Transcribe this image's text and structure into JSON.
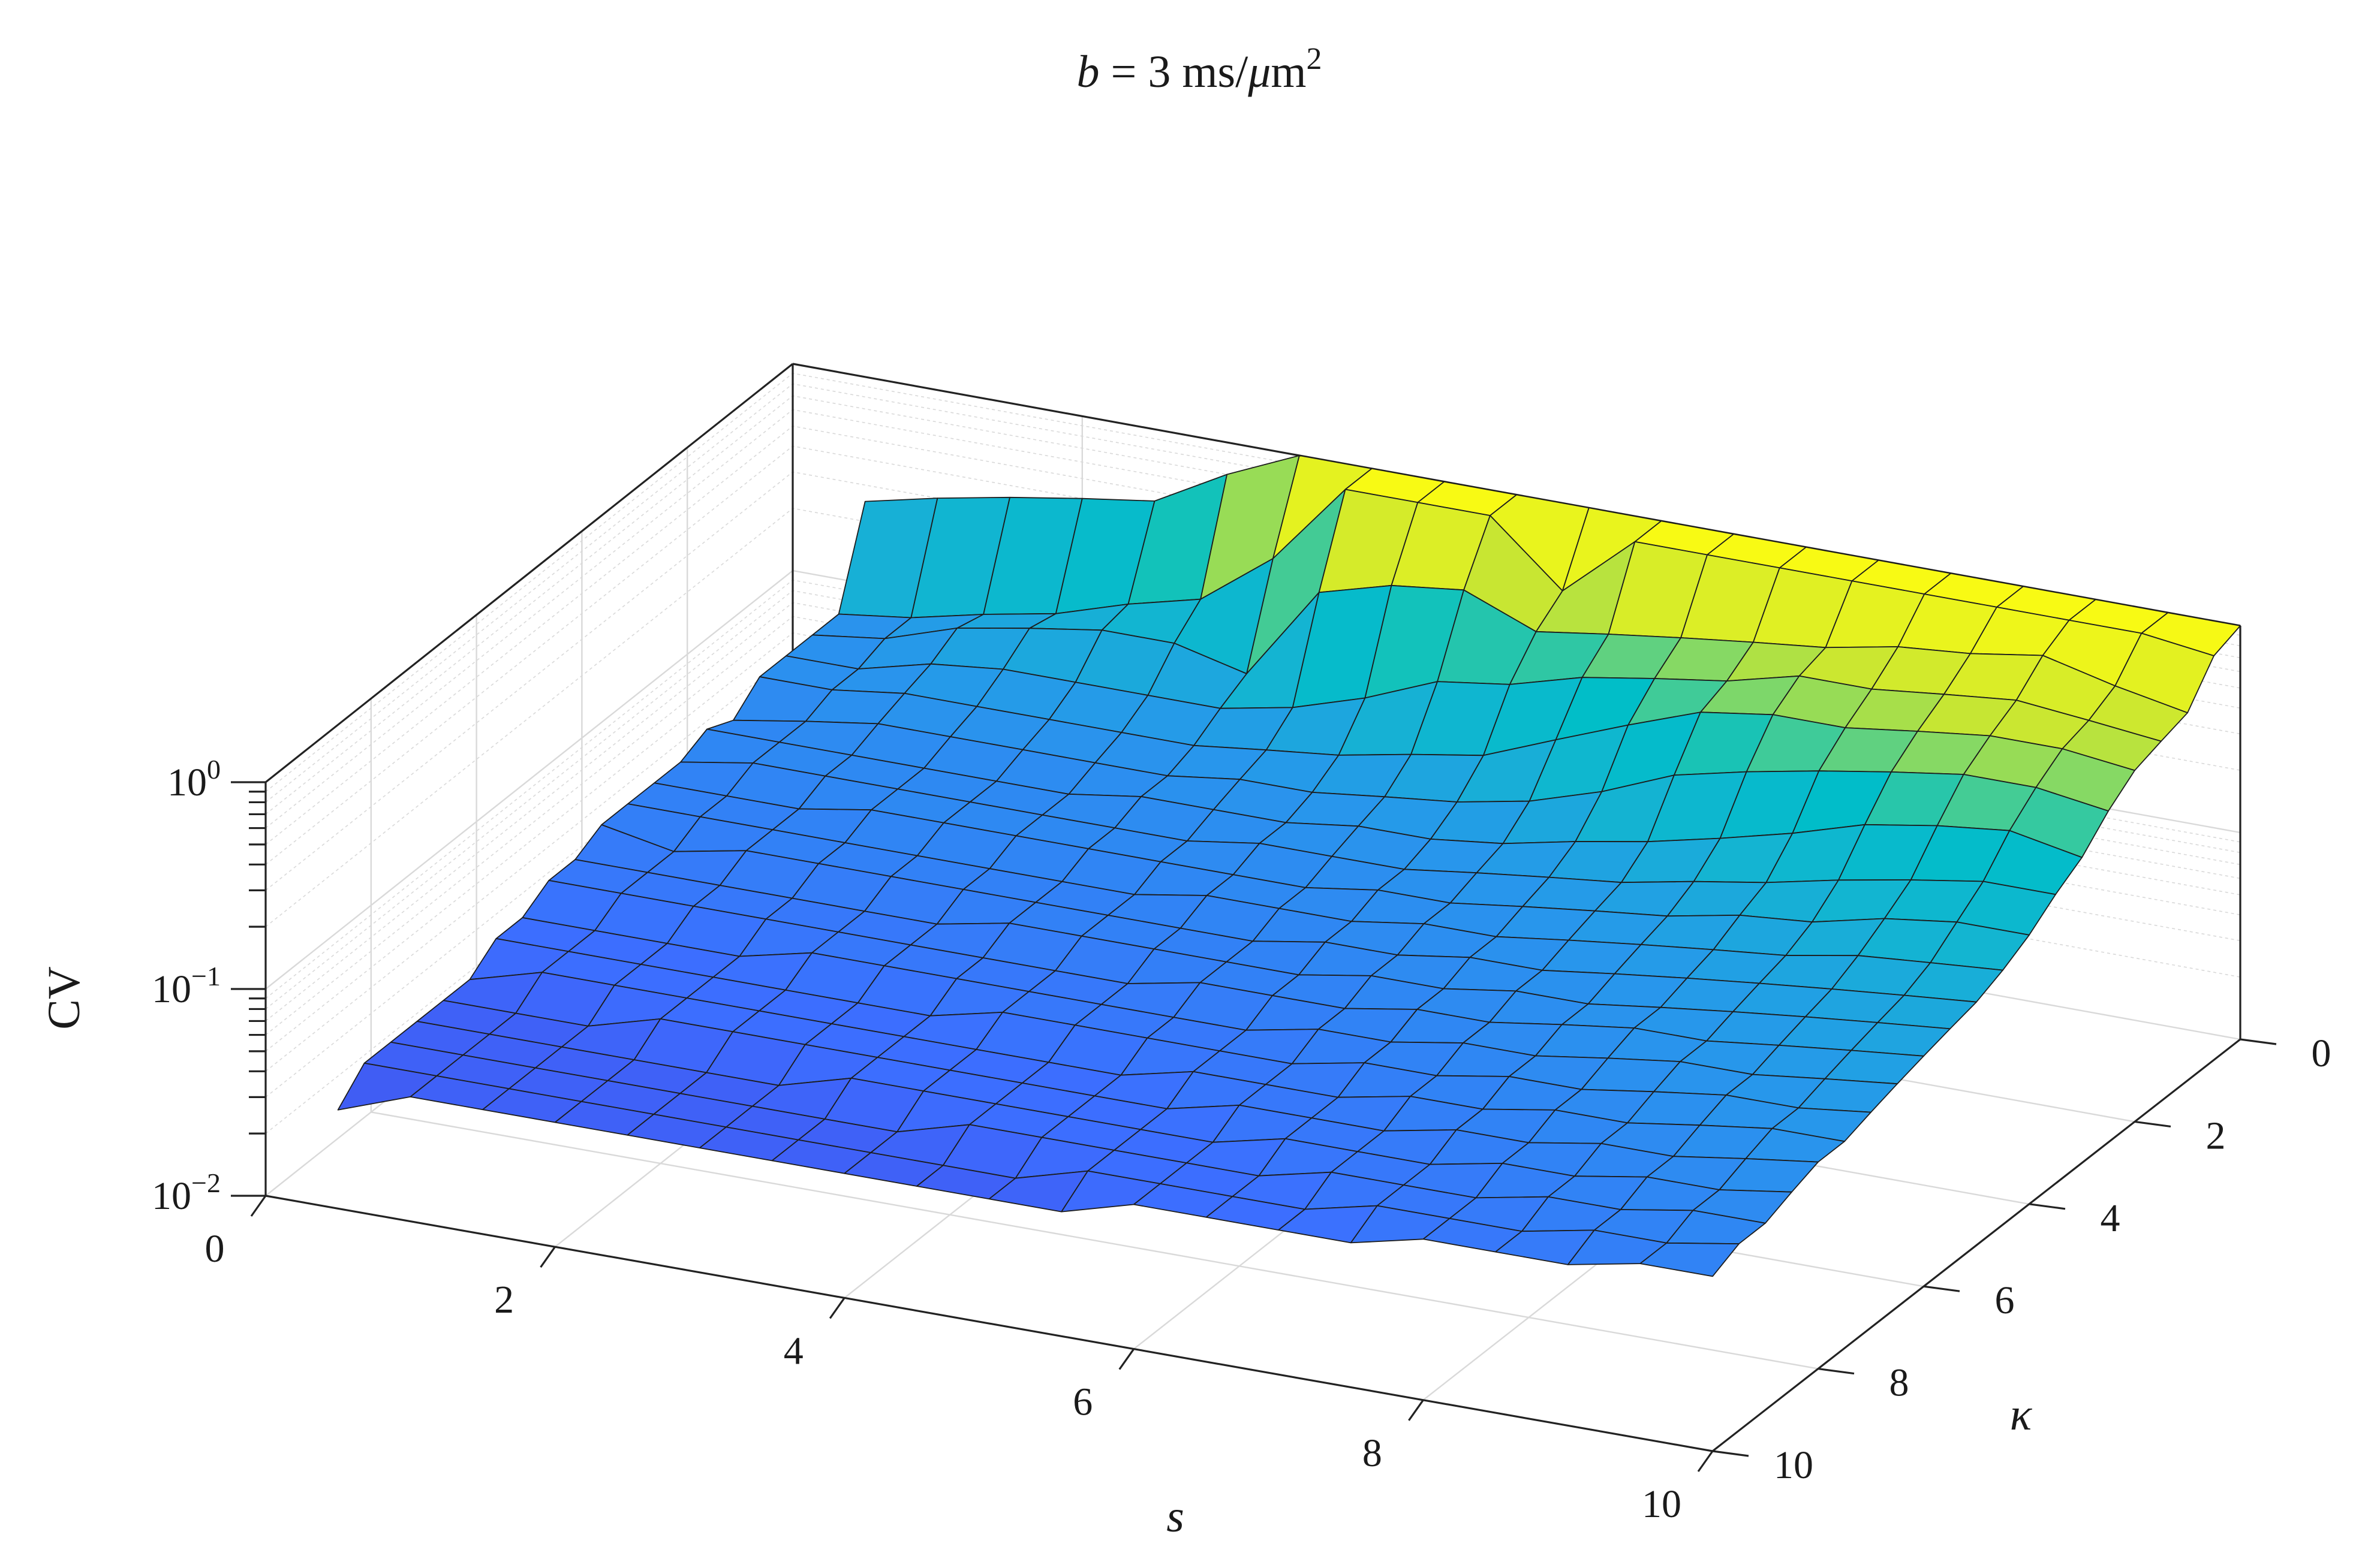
{
  "chart_data": {
    "type": "surface",
    "title": "b = 3 ms/μm²",
    "title_parts": {
      "var": "b",
      "eq": " = 3 ms/",
      "mu": "μ",
      "unit": "m",
      "sup": "2"
    },
    "xlabel": "s",
    "ylabel": "κ",
    "zlabel": "CV",
    "x_ticks": [
      "0",
      "2",
      "4",
      "6",
      "8",
      "10"
    ],
    "y_ticks": [
      "0",
      "2",
      "4",
      "6",
      "8",
      "10"
    ],
    "z_ticks": [
      {
        "base": "10",
        "exp": "0"
      },
      {
        "base": "10",
        "exp": "−1"
      },
      {
        "base": "10",
        "exp": "−2"
      }
    ],
    "xlim": [
      0,
      10
    ],
    "ylim": [
      0,
      10
    ],
    "zlim": [
      0.01,
      1
    ],
    "zscale": "log",
    "grid": true,
    "colormap": "parula",
    "s": [
      0.5,
      1,
      1.5,
      2,
      2.5,
      3,
      3.5,
      4,
      4.5,
      5,
      5.5,
      6,
      6.5,
      7,
      7.5,
      8,
      8.5,
      9,
      9.5,
      10
    ],
    "kappa": [
      0,
      0.5,
      1,
      1.5,
      2,
      2.5,
      3,
      3.5,
      4,
      4.5,
      5,
      5.5,
      6,
      6.5,
      7,
      7.5,
      8,
      8.5,
      9,
      9.5,
      10
    ],
    "cv": [
      [
        0.25,
        0.09,
        0.09,
        0.09,
        0.09,
        0.07,
        0.08,
        0.07,
        0.07,
        0.07,
        0.07,
        0.06,
        0.06,
        0.05,
        0.05,
        0.04,
        0.04,
        0.04,
        0.04,
        0.04,
        0.03
      ],
      [
        0.3,
        0.1,
        0.1,
        0.09,
        0.09,
        0.08,
        0.08,
        0.08,
        0.07,
        0.07,
        0.06,
        0.06,
        0.06,
        0.05,
        0.05,
        0.05,
        0.04,
        0.04,
        0.04,
        0.04,
        0.04
      ],
      [
        0.35,
        0.12,
        0.13,
        0.11,
        0.1,
        0.09,
        0.08,
        0.08,
        0.07,
        0.07,
        0.07,
        0.06,
        0.06,
        0.05,
        0.05,
        0.05,
        0.04,
        0.04,
        0.04,
        0.04,
        0.04
      ],
      [
        0.4,
        0.14,
        0.15,
        0.12,
        0.1,
        0.09,
        0.08,
        0.08,
        0.08,
        0.07,
        0.07,
        0.06,
        0.06,
        0.05,
        0.05,
        0.05,
        0.05,
        0.04,
        0.04,
        0.04,
        0.04
      ],
      [
        0.45,
        0.18,
        0.17,
        0.12,
        0.1,
        0.09,
        0.08,
        0.08,
        0.08,
        0.07,
        0.07,
        0.06,
        0.06,
        0.06,
        0.05,
        0.05,
        0.05,
        0.04,
        0.04,
        0.04,
        0.04
      ],
      [
        0.7,
        0.22,
        0.17,
        0.12,
        0.1,
        0.09,
        0.08,
        0.08,
        0.08,
        0.07,
        0.07,
        0.06,
        0.06,
        0.06,
        0.05,
        0.05,
        0.05,
        0.04,
        0.04,
        0.04,
        0.04
      ],
      [
        1.0,
        0.4,
        0.14,
        0.12,
        0.1,
        0.09,
        0.09,
        0.08,
        0.08,
        0.07,
        0.07,
        0.07,
        0.06,
        0.06,
        0.05,
        0.05,
        0.05,
        0.05,
        0.04,
        0.04,
        0.04
      ],
      [
        1.0,
        1.0,
        0.4,
        0.14,
        0.11,
        0.1,
        0.09,
        0.08,
        0.08,
        0.07,
        0.07,
        0.07,
        0.06,
        0.06,
        0.06,
        0.05,
        0.05,
        0.05,
        0.04,
        0.04,
        0.04
      ],
      [
        1.0,
        1.0,
        0.5,
        0.18,
        0.12,
        0.1,
        0.09,
        0.09,
        0.08,
        0.08,
        0.07,
        0.07,
        0.06,
        0.06,
        0.06,
        0.05,
        0.05,
        0.05,
        0.05,
        0.04,
        0.04
      ],
      [
        1.0,
        1.0,
        0.55,
        0.25,
        0.14,
        0.11,
        0.1,
        0.09,
        0.08,
        0.08,
        0.07,
        0.07,
        0.07,
        0.06,
        0.06,
        0.05,
        0.05,
        0.05,
        0.05,
        0.04,
        0.04
      ],
      [
        1.0,
        0.5,
        0.4,
        0.28,
        0.16,
        0.12,
        0.1,
        0.09,
        0.09,
        0.08,
        0.08,
        0.07,
        0.07,
        0.06,
        0.06,
        0.06,
        0.05,
        0.05,
        0.05,
        0.05,
        0.04
      ],
      [
        1.0,
        1.0,
        0.45,
        0.35,
        0.22,
        0.14,
        0.11,
        0.1,
        0.09,
        0.09,
        0.08,
        0.08,
        0.07,
        0.07,
        0.06,
        0.06,
        0.06,
        0.05,
        0.05,
        0.05,
        0.05
      ],
      [
        1.0,
        1.0,
        0.5,
        0.4,
        0.3,
        0.18,
        0.13,
        0.11,
        0.1,
        0.09,
        0.09,
        0.08,
        0.08,
        0.07,
        0.07,
        0.06,
        0.06,
        0.06,
        0.05,
        0.05,
        0.05
      ],
      [
        1.0,
        1.0,
        0.55,
        0.45,
        0.4,
        0.25,
        0.15,
        0.12,
        0.11,
        0.1,
        0.09,
        0.09,
        0.08,
        0.08,
        0.07,
        0.07,
        0.06,
        0.06,
        0.06,
        0.05,
        0.05
      ],
      [
        1.0,
        1.0,
        0.6,
        0.55,
        0.45,
        0.3,
        0.18,
        0.14,
        0.12,
        0.11,
        0.1,
        0.09,
        0.09,
        0.08,
        0.08,
        0.07,
        0.07,
        0.06,
        0.06,
        0.06,
        0.05
      ],
      [
        1.0,
        1.0,
        0.7,
        0.55,
        0.45,
        0.35,
        0.22,
        0.16,
        0.14,
        0.12,
        0.11,
        0.1,
        0.1,
        0.09,
        0.08,
        0.08,
        0.07,
        0.07,
        0.06,
        0.06,
        0.06
      ],
      [
        1.0,
        1.0,
        0.75,
        0.6,
        0.5,
        0.4,
        0.28,
        0.19,
        0.15,
        0.13,
        0.12,
        0.11,
        0.1,
        0.1,
        0.09,
        0.08,
        0.08,
        0.07,
        0.07,
        0.06,
        0.06
      ],
      [
        1.0,
        1.0,
        0.85,
        0.65,
        0.55,
        0.45,
        0.32,
        0.22,
        0.18,
        0.15,
        0.13,
        0.12,
        0.11,
        0.1,
        0.1,
        0.09,
        0.08,
        0.08,
        0.07,
        0.07,
        0.06
      ],
      [
        1.0,
        1.0,
        0.7,
        0.6,
        0.55,
        0.45,
        0.35,
        0.25,
        0.2,
        0.16,
        0.14,
        0.13,
        0.12,
        0.11,
        0.1,
        0.1,
        0.09,
        0.08,
        0.08,
        0.07,
        0.07
      ],
      [
        1.0,
        0.9,
        0.6,
        0.55,
        0.5,
        0.4,
        0.3,
        0.25,
        0.2,
        0.17,
        0.15,
        0.14,
        0.13,
        0.12,
        0.11,
        0.1,
        0.1,
        0.09,
        0.08,
        0.08,
        0.07
      ]
    ]
  }
}
